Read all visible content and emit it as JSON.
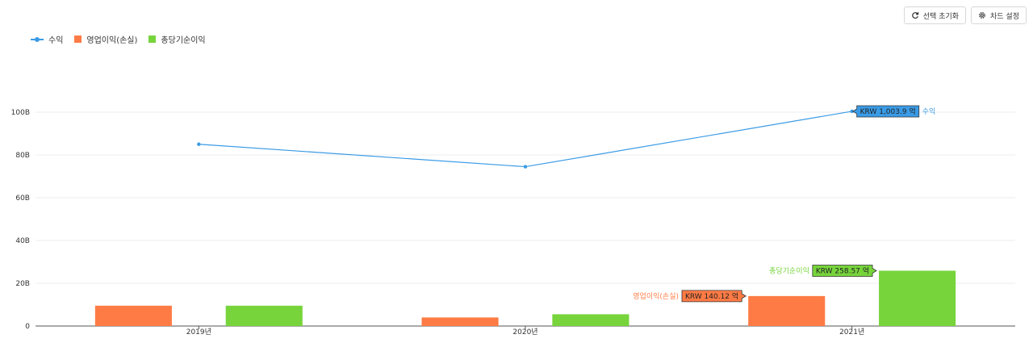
{
  "toolbar": {
    "reset_label": "선택 초기화",
    "settings_label": "차드 설정",
    "reset_icon": "refresh-icon",
    "settings_icon": "gear-icon"
  },
  "colors": {
    "revenue": "#3a9be6",
    "operating": "#ff7b45",
    "net": "#77d43b"
  },
  "chart_data": {
    "type": "bar",
    "categories": [
      "2019년",
      "2020년",
      "2021년"
    ],
    "series": [
      {
        "name": "수익",
        "type": "line",
        "values": [
          85,
          74.5,
          100.39
        ]
      },
      {
        "name": "영업이익(손실)",
        "type": "bar",
        "values": [
          9.5,
          4.0,
          14.012
        ]
      },
      {
        "name": "총당기순이익",
        "type": "bar",
        "values": [
          9.5,
          5.5,
          25.857
        ]
      }
    ],
    "y_ticks": [
      "0",
      "20B",
      "40B",
      "60B",
      "80B",
      "100B"
    ],
    "ylim": [
      0,
      100
    ],
    "grid": true,
    "legend_position": "top-left",
    "data_labels": [
      {
        "series": 0,
        "index": 2,
        "text": "KRW 1,003.9 억",
        "name": "수익"
      },
      {
        "series": 2,
        "index": 2,
        "text": "KRW 258.57 억",
        "name": "총당기순이익"
      },
      {
        "series": 1,
        "index": 2,
        "text": "KRW 140.12 억",
        "name": "영업이익(손실)"
      }
    ]
  }
}
